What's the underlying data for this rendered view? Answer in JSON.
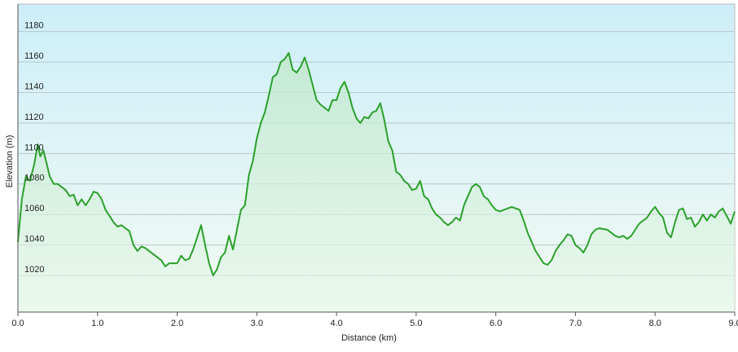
{
  "chart_data": {
    "type": "area",
    "x_label": "Distance  (km)",
    "y_label": "Elevation (m)",
    "x": [
      0,
      0.05,
      0.1,
      0.15,
      0.2,
      0.25,
      0.28,
      0.32,
      0.4,
      0.45,
      0.5,
      0.6,
      0.65,
      0.7,
      0.75,
      0.8,
      0.85,
      0.9,
      0.95,
      1.0,
      1.05,
      1.1,
      1.2,
      1.25,
      1.3,
      1.4,
      1.45,
      1.5,
      1.55,
      1.6,
      1.7,
      1.8,
      1.85,
      1.9,
      2.0,
      2.05,
      2.1,
      2.15,
      2.2,
      2.25,
      2.3,
      2.35,
      2.4,
      2.45,
      2.5,
      2.55,
      2.6,
      2.65,
      2.7,
      2.75,
      2.8,
      2.85,
      2.9,
      2.95,
      3.0,
      3.05,
      3.1,
      3.15,
      3.2,
      3.25,
      3.3,
      3.35,
      3.4,
      3.45,
      3.5,
      3.55,
      3.6,
      3.65,
      3.7,
      3.75,
      3.8,
      3.85,
      3.9,
      3.95,
      4.0,
      4.05,
      4.1,
      4.15,
      4.2,
      4.25,
      4.3,
      4.35,
      4.4,
      4.45,
      4.5,
      4.55,
      4.6,
      4.65,
      4.7,
      4.75,
      4.8,
      4.85,
      4.9,
      4.95,
      5.0,
      5.05,
      5.1,
      5.15,
      5.2,
      5.25,
      5.3,
      5.35,
      5.4,
      5.45,
      5.5,
      5.55,
      5.6,
      5.65,
      5.7,
      5.75,
      5.8,
      5.85,
      5.9,
      5.95,
      6.0,
      6.05,
      6.1,
      6.15,
      6.2,
      6.3,
      6.35,
      6.4,
      6.45,
      6.5,
      6.55,
      6.6,
      6.65,
      6.7,
      6.75,
      6.8,
      6.85,
      6.9,
      6.95,
      7.0,
      7.05,
      7.1,
      7.15,
      7.2,
      7.25,
      7.3,
      7.4,
      7.45,
      7.5,
      7.55,
      7.6,
      7.65,
      7.7,
      7.75,
      7.8,
      7.85,
      7.9,
      7.95,
      8.0,
      8.05,
      8.1,
      8.15,
      8.2,
      8.25,
      8.3,
      8.35,
      8.4,
      8.45,
      8.5,
      8.55,
      8.6,
      8.65,
      8.7,
      8.75,
      8.8,
      8.85,
      8.9,
      8.95,
      9.0
    ],
    "series": [
      {
        "color": "#2ca02c",
        "values": [
          1042,
          1070,
          1085,
          1082,
          1092,
          1106,
          1098,
          1102,
          1085,
          1080,
          1080,
          1076,
          1072,
          1073,
          1066,
          1070,
          1066,
          1070,
          1075,
          1074,
          1070,
          1063,
          1055,
          1052,
          1053,
          1049,
          1040,
          1036,
          1039,
          1038,
          1034,
          1030,
          1026,
          1028,
          1028,
          1033,
          1030,
          1031,
          1037,
          1045,
          1053,
          1040,
          1028,
          1020,
          1024,
          1032,
          1035,
          1046,
          1037,
          1050,
          1063,
          1066,
          1086,
          1095,
          1110,
          1120,
          1127,
          1138,
          1150,
          1152,
          1160,
          1162,
          1166,
          1155,
          1153,
          1157,
          1163,
          1155,
          1145,
          1135,
          1132,
          1130,
          1128,
          1135,
          1135,
          1143,
          1147,
          1140,
          1130,
          1123,
          1120,
          1124,
          1123,
          1127,
          1128,
          1133,
          1122,
          1108,
          1102,
          1088,
          1086,
          1082,
          1080,
          1076,
          1077,
          1082,
          1072,
          1070,
          1064,
          1060,
          1058,
          1055,
          1053,
          1055,
          1058,
          1056,
          1066,
          1072,
          1078,
          1080,
          1078,
          1072,
          1070,
          1066,
          1063,
          1062,
          1063,
          1064,
          1065,
          1063,
          1056,
          1048,
          1042,
          1036,
          1032,
          1028,
          1027,
          1030,
          1036,
          1040,
          1043,
          1047,
          1046,
          1040,
          1038,
          1035,
          1040,
          1047,
          1050,
          1051,
          1050,
          1048,
          1046,
          1045,
          1046,
          1044,
          1046,
          1050,
          1054,
          1056,
          1058,
          1062,
          1065,
          1061,
          1058,
          1048,
          1045,
          1055,
          1063,
          1064,
          1057,
          1058,
          1052,
          1055,
          1060,
          1056,
          1060,
          1058,
          1062,
          1064,
          1059,
          1054,
          1062
        ]
      }
    ],
    "xlim": [
      0,
      9
    ],
    "xticks": [
      {
        "value": 0,
        "label": "0.0"
      },
      {
        "value": 1,
        "label": "1.0"
      },
      {
        "value": 2,
        "label": "2.0"
      },
      {
        "value": 3,
        "label": "3.0"
      },
      {
        "value": 4,
        "label": "4.0"
      },
      {
        "value": 5,
        "label": "5.0"
      },
      {
        "value": 6,
        "label": "6.0"
      },
      {
        "value": 7,
        "label": "7.0"
      },
      {
        "value": 8,
        "label": "8.0"
      },
      {
        "value": 9,
        "label": "9.0"
      }
    ],
    "ylim": [
      996,
      1198
    ],
    "yticks": [
      1020,
      1040,
      1060,
      1080,
      1100,
      1120,
      1140,
      1160,
      1180
    ],
    "grid": true
  }
}
